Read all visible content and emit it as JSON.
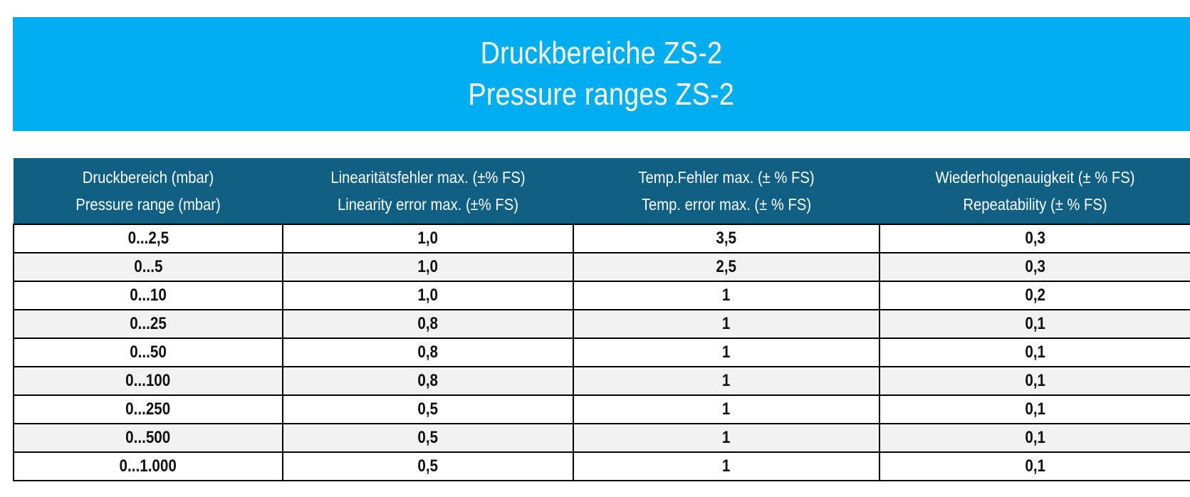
{
  "title": {
    "de": "Druckbereiche ZS-2",
    "en": "Pressure ranges ZS-2"
  },
  "colors": {
    "banner": "#00aeef",
    "header": "#0f5f82",
    "row_alt": "#f2f2f2",
    "border": "#000000"
  },
  "columns": [
    {
      "de": "Druckbereich (mbar)",
      "en": "Pressure range (mbar)"
    },
    {
      "de": "Linearitätsfehler max. (±% FS)",
      "en": "Linearity error max. (±% FS)"
    },
    {
      "de": "Temp.Fehler  max. (± % FS)",
      "en": "Temp. error max. (± % FS)"
    },
    {
      "de": "Wiederholgenauigkeit (± % FS)",
      "en": "Repeatability (± % FS)"
    }
  ],
  "rows": [
    [
      "0...2,5",
      "1,0",
      "3,5",
      "0,3"
    ],
    [
      "0...5",
      "1,0",
      "2,5",
      "0,3"
    ],
    [
      "0...10",
      "1,0",
      "1",
      "0,2"
    ],
    [
      "0...25",
      "0,8",
      "1",
      "0,1"
    ],
    [
      "0...50",
      "0,8",
      "1",
      "0,1"
    ],
    [
      "0...100",
      "0,8",
      "1",
      "0,1"
    ],
    [
      "0...250",
      "0,5",
      "1",
      "0,1"
    ],
    [
      "0...500",
      "0,5",
      "1",
      "0,1"
    ],
    [
      "0...1.000",
      "0,5",
      "1",
      "0,1"
    ]
  ]
}
